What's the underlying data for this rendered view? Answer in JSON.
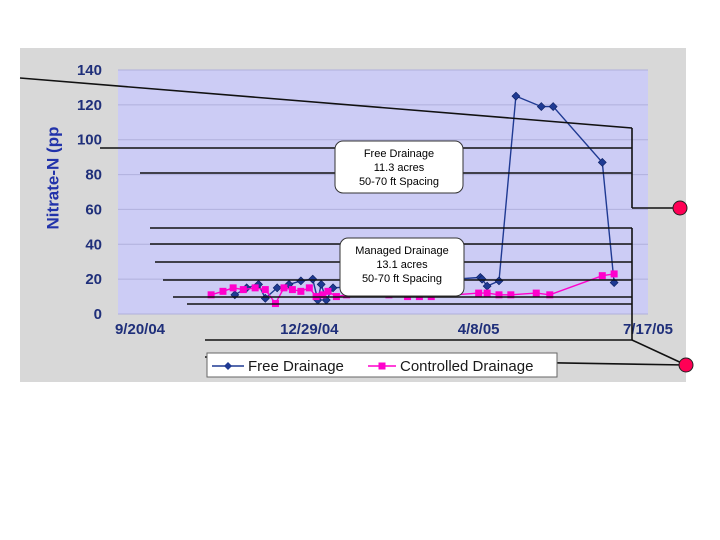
{
  "chart_data": {
    "type": "line",
    "ylabel": "Nitrate-N (pp",
    "ylim": [
      0,
      140
    ],
    "y_ticks": [
      "140",
      "120",
      "100",
      "80",
      "60",
      "40",
      "20",
      "0"
    ],
    "x_tick_labels": [
      "9/20/04",
      "12/29/04",
      "4/8/05",
      "7/17/05"
    ],
    "x_tick_dates": [
      "2004-09-20",
      "2004-12-29",
      "2005-04-08",
      "2005-07-17"
    ],
    "grid": true,
    "legend_position": "bottom",
    "series": [
      {
        "name": "Free Drainage",
        "color": "#1f3a93",
        "marker": "diamond",
        "points": [
          {
            "x": "2004-11-15",
            "y": 11
          },
          {
            "x": "2004-11-22",
            "y": 15
          },
          {
            "x": "2004-11-29",
            "y": 17
          },
          {
            "x": "2004-12-03",
            "y": 9
          },
          {
            "x": "2004-12-10",
            "y": 15
          },
          {
            "x": "2004-12-17",
            "y": 17
          },
          {
            "x": "2004-12-24",
            "y": 19
          },
          {
            "x": "2004-12-31",
            "y": 20
          },
          {
            "x": "2005-01-03",
            "y": 8
          },
          {
            "x": "2005-01-05",
            "y": 17
          },
          {
            "x": "2005-01-08",
            "y": 8
          },
          {
            "x": "2005-01-12",
            "y": 15
          },
          {
            "x": "2005-04-09",
            "y": 21
          },
          {
            "x": "2005-04-10",
            "y": 20
          },
          {
            "x": "2005-04-13",
            "y": 16
          },
          {
            "x": "2005-04-20",
            "y": 19
          },
          {
            "x": "2005-04-30",
            "y": 125
          },
          {
            "x": "2005-05-15",
            "y": 119
          },
          {
            "x": "2005-05-22",
            "y": 119
          },
          {
            "x": "2005-06-20",
            "y": 87
          },
          {
            "x": "2005-06-27",
            "y": 18
          }
        ]
      },
      {
        "name": "Controlled Drainage",
        "color": "#ff00cc",
        "marker": "square",
        "points": [
          {
            "x": "2004-11-01",
            "y": 11
          },
          {
            "x": "2004-11-08",
            "y": 13
          },
          {
            "x": "2004-11-14",
            "y": 15
          },
          {
            "x": "2004-11-20",
            "y": 14
          },
          {
            "x": "2004-11-27",
            "y": 15
          },
          {
            "x": "2004-12-03",
            "y": 14
          },
          {
            "x": "2004-12-09",
            "y": 6
          },
          {
            "x": "2004-12-14",
            "y": 15
          },
          {
            "x": "2004-12-19",
            "y": 14
          },
          {
            "x": "2004-12-24",
            "y": 13
          },
          {
            "x": "2004-12-29",
            "y": 15
          },
          {
            "x": "2005-01-02",
            "y": 10
          },
          {
            "x": "2005-01-06",
            "y": 11
          },
          {
            "x": "2005-01-09",
            "y": 13
          },
          {
            "x": "2005-01-14",
            "y": 10
          },
          {
            "x": "2005-01-20",
            "y": 11
          },
          {
            "x": "2005-02-14",
            "y": 11
          },
          {
            "x": "2005-02-25",
            "y": 10
          },
          {
            "x": "2005-03-04",
            "y": 10
          },
          {
            "x": "2005-03-11",
            "y": 10
          },
          {
            "x": "2005-04-08",
            "y": 12
          },
          {
            "x": "2005-04-13",
            "y": 12
          },
          {
            "x": "2005-04-20",
            "y": 11
          },
          {
            "x": "2005-04-27",
            "y": 11
          },
          {
            "x": "2005-05-12",
            "y": 12
          },
          {
            "x": "2005-05-20",
            "y": 11
          },
          {
            "x": "2005-06-20",
            "y": 22
          },
          {
            "x": "2005-06-27",
            "y": 23
          }
        ]
      }
    ],
    "annotations": [
      {
        "lines": [
          "Free Drainage",
          "11.3 acres",
          "50-70 ft Spacing"
        ]
      },
      {
        "lines": [
          "Managed Drainage",
          "13.1 acres",
          "50-70 ft Spacing"
        ]
      }
    ],
    "legend": [
      "Free Drainage",
      "Controlled Drainage"
    ],
    "colors": {
      "plot_bg": "#ccccf5",
      "outer_bg": "#ffffff",
      "frame": "#d8d8d8",
      "callout": "#ff0055"
    }
  }
}
